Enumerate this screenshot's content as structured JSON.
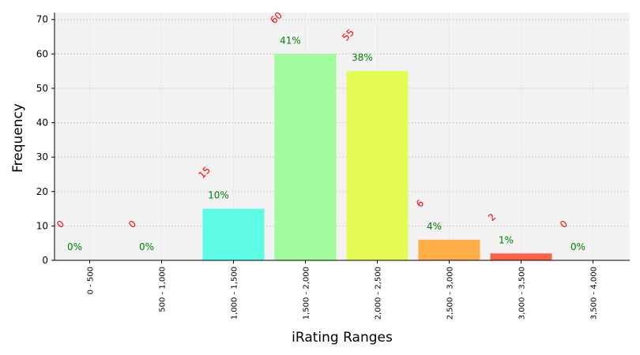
{
  "chart_data": {
    "type": "bar",
    "xlabel": "iRating Ranges",
    "ylabel": "Frequency",
    "ylim": [
      0,
      72
    ],
    "yticks": [
      0,
      10,
      20,
      30,
      40,
      50,
      60,
      70
    ],
    "grid": true,
    "categories": [
      "0 - 500",
      "500 - 1,000",
      "1,000 - 1,500",
      "1,500 - 2,000",
      "2,000 - 2,500",
      "2,500 - 3,000",
      "3,000 - 3,500",
      "3,500 - 4,000"
    ],
    "values": [
      0,
      0,
      15,
      60,
      55,
      6,
      2,
      0
    ],
    "count_labels": [
      "0",
      "0",
      "15",
      "60",
      "55",
      "6",
      "2",
      "0"
    ],
    "percent_labels": [
      "0%",
      "0%",
      "10%",
      "41%",
      "38%",
      "4%",
      "1%",
      "0%"
    ],
    "bar_colors": [
      "#6aa0ff",
      "#6ad0ff",
      "#5cfce6",
      "#a0fc9c",
      "#e6fc54",
      "#ffae48",
      "#ff6148",
      "#ff3030"
    ],
    "count_label_color": "#ff0000",
    "percent_label_color": "#008000",
    "plot_background": "#f2f2f2"
  }
}
